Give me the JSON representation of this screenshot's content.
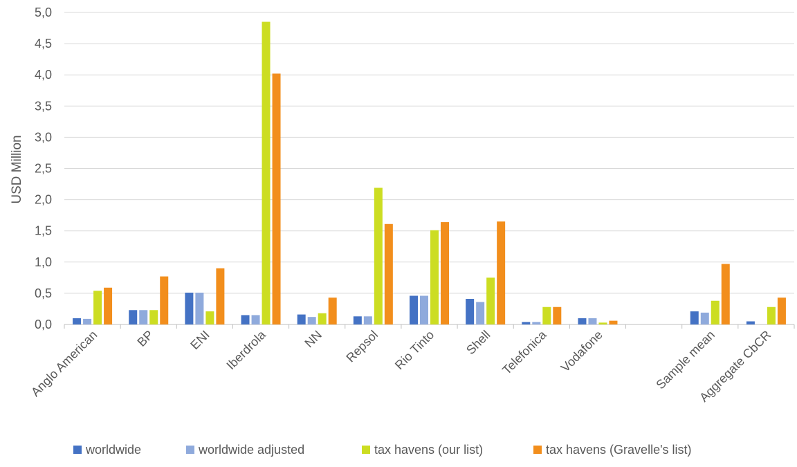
{
  "chart_data": {
    "type": "bar",
    "title": "",
    "xlabel": "",
    "ylabel": "USD Million",
    "ylim": [
      0,
      5.0
    ],
    "ytick_step": 0.5,
    "yticks": [
      "0,0",
      "0,5",
      "1,0",
      "1,5",
      "2,0",
      "2,5",
      "3,0",
      "3,5",
      "4,0",
      "4,5",
      "5,0"
    ],
    "grid": true,
    "legend_position": "bottom",
    "categories": [
      "Anglo American",
      "BP",
      "ENI",
      "Iberdrola",
      "NN",
      "Repsol",
      "Rio Tinto",
      "Shell",
      "Telefonica",
      "Vodafone",
      "",
      "Sample mean",
      "Aggregate CbCR"
    ],
    "series": [
      {
        "name": "worldwide",
        "color": "#4472C4",
        "values": [
          0.1,
          0.23,
          0.51,
          0.15,
          0.16,
          0.13,
          0.46,
          0.41,
          0.04,
          0.1,
          null,
          0.21,
          0.05
        ]
      },
      {
        "name": "worldwide adjusted",
        "color": "#8FAADC",
        "values": [
          0.09,
          0.23,
          0.51,
          0.15,
          0.12,
          0.13,
          0.46,
          0.36,
          0.04,
          0.1,
          null,
          0.19,
          0.0
        ]
      },
      {
        "name": "tax havens (our list)",
        "color": "#CCDD22",
        "values": [
          0.54,
          0.23,
          0.21,
          4.85,
          0.18,
          2.19,
          1.51,
          0.75,
          0.28,
          0.03,
          null,
          0.38,
          0.28
        ]
      },
      {
        "name": "tax havens (Gravelle's list)",
        "color": "#F28E1C",
        "values": [
          0.59,
          0.77,
          0.9,
          4.02,
          0.43,
          1.61,
          1.64,
          1.65,
          0.28,
          0.06,
          null,
          0.97,
          0.43
        ]
      }
    ]
  }
}
